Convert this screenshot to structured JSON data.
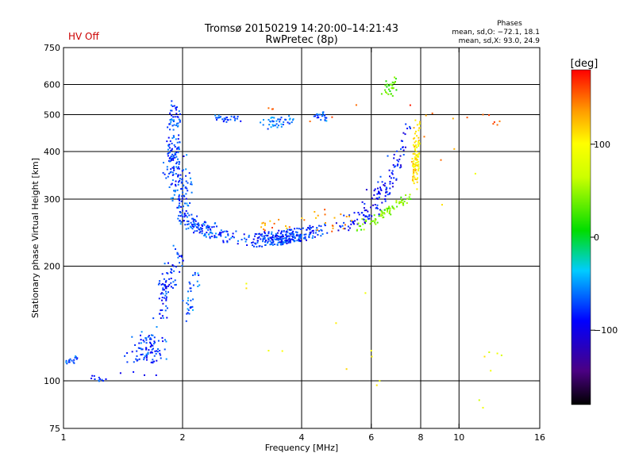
{
  "chart_data": {
    "type": "scatter",
    "title": "Tromsø 20150219 14:20:00–14:21:43",
    "subtitle": "RwPretec (8p)",
    "status_label": "HV Off",
    "status_color": "#cc0000",
    "phases": {
      "heading": "Phases",
      "line_o": "mean, sd,O: −72.1, 18.1",
      "line_x": "mean, sd,X:  93.0, 24.9"
    },
    "xlabel": "Frequency [MHz]",
    "ylabel": "Stationary phase Virtual Height [km]",
    "x_scale": "log",
    "y_scale": "log",
    "xlim": [
      1,
      16
    ],
    "ylim": [
      75,
      750
    ],
    "x_ticks": [
      {
        "value": 1,
        "label": "1"
      },
      {
        "value": 2,
        "label": "2"
      },
      {
        "value": 4,
        "label": "4"
      },
      {
        "value": 6,
        "label": "6"
      },
      {
        "value": 8,
        "label": "8"
      },
      {
        "value": 10,
        "label": "10"
      },
      {
        "value": 16,
        "label": "16"
      }
    ],
    "y_ticks": [
      {
        "value": 75,
        "label": "75"
      },
      {
        "value": 100,
        "label": "100"
      },
      {
        "value": 200,
        "label": "200"
      },
      {
        "value": 300,
        "label": "300"
      },
      {
        "value": 400,
        "label": "400"
      },
      {
        "value": 500,
        "label": "500"
      },
      {
        "value": 600,
        "label": "600"
      },
      {
        "value": 750,
        "label": "750"
      }
    ],
    "x_grid": [
      2,
      4,
      6,
      8,
      10
    ],
    "y_grid": [
      100,
      200,
      300,
      400,
      500,
      600
    ],
    "colorbar": {
      "label": "[deg]",
      "range": [
        -180,
        180
      ],
      "ticks": [
        {
          "value": 100,
          "label": "100"
        },
        {
          "value": 0,
          "label": "0"
        },
        {
          "value": -100,
          "label": "−100"
        }
      ]
    },
    "seed": 7,
    "clusters": [
      {
        "name": "lowest-trace",
        "points": [
          [
            1.03,
            112
          ],
          [
            1.05,
            113
          ],
          [
            1.07,
            115
          ],
          [
            1.04,
            114
          ],
          [
            1.06,
            112
          ],
          [
            1.08,
            114
          ],
          [
            1.02,
            111
          ]
        ],
        "phase": -70,
        "count": 10,
        "jx": 0.02,
        "jy": 0.02
      },
      {
        "name": "lowest-trace-2",
        "points": [
          [
            1.2,
            101
          ],
          [
            1.23,
            102
          ],
          [
            1.26,
            100
          ]
        ],
        "phase": -80,
        "count": 8,
        "jx": 0.02,
        "jy": 0.02
      },
      {
        "name": "f-rise-base",
        "points": [
          [
            1.45,
            112
          ],
          [
            1.55,
            122
          ],
          [
            1.62,
            128
          ],
          [
            1.7,
            130
          ],
          [
            1.75,
            120
          ],
          [
            1.6,
            115
          ],
          [
            1.68,
            112
          ]
        ],
        "phase": -75,
        "count": 90,
        "jx": 0.05,
        "jy": 0.08
      },
      {
        "name": "f-rise-mid",
        "points": [
          [
            1.75,
            150
          ],
          [
            1.8,
            165
          ],
          [
            1.85,
            185
          ],
          [
            1.9,
            200
          ],
          [
            1.95,
            215
          ],
          [
            1.82,
            175
          ]
        ],
        "phase": -80,
        "count": 80,
        "jx": 0.04,
        "jy": 0.06
      },
      {
        "name": "f-rise-side",
        "points": [
          [
            2.05,
            160
          ],
          [
            2.1,
            175
          ],
          [
            2.15,
            190
          ],
          [
            2.08,
            150
          ]
        ],
        "phase": -65,
        "count": 30,
        "jx": 0.03,
        "jy": 0.06
      },
      {
        "name": "f2-vertical",
        "points": [
          [
            1.85,
            350
          ],
          [
            1.88,
            420
          ],
          [
            1.9,
            480
          ],
          [
            1.92,
            520
          ],
          [
            1.95,
            300
          ],
          [
            2.0,
            280
          ],
          [
            1.9,
            390
          ],
          [
            2.05,
            320
          ]
        ],
        "phase": -75,
        "count": 200,
        "jx": 0.035,
        "jy": 0.05
      },
      {
        "name": "f2-elbow",
        "points": [
          [
            2.0,
            270
          ],
          [
            2.1,
            260
          ],
          [
            2.2,
            250
          ],
          [
            2.35,
            245
          ],
          [
            2.5,
            240
          ],
          [
            2.7,
            238
          ]
        ],
        "phase": -72,
        "count": 130,
        "jx": 0.04,
        "jy": 0.04
      },
      {
        "name": "f2-floor",
        "points": [
          [
            2.9,
            235
          ],
          [
            3.1,
            233
          ],
          [
            3.3,
            235
          ],
          [
            3.5,
            236
          ],
          [
            3.7,
            240
          ],
          [
            3.9,
            242
          ],
          [
            4.2,
            245
          ],
          [
            4.5,
            248
          ]
        ],
        "phase": -78,
        "count": 260,
        "jx": 0.035,
        "jy": 0.04
      },
      {
        "name": "f2-top-patch-1",
        "points": [
          [
            2.45,
            490
          ],
          [
            2.6,
            485
          ],
          [
            2.75,
            488
          ]
        ],
        "phase": -70,
        "count": 25,
        "jx": 0.02,
        "jy": 0.02
      },
      {
        "name": "f2-top-patch-2",
        "points": [
          [
            3.2,
            470
          ],
          [
            3.4,
            480
          ],
          [
            3.6,
            478
          ],
          [
            3.8,
            484
          ]
        ],
        "phase": -60,
        "count": 40,
        "jx": 0.03,
        "jy": 0.03
      },
      {
        "name": "f2-top-patch-3",
        "points": [
          [
            4.3,
            495
          ],
          [
            4.45,
            500
          ],
          [
            4.6,
            490
          ]
        ],
        "phase": -65,
        "count": 20,
        "jx": 0.02,
        "jy": 0.02
      },
      {
        "name": "o-trace-up",
        "points": [
          [
            5.0,
            255
          ],
          [
            5.4,
            260
          ],
          [
            5.8,
            270
          ],
          [
            6.2,
            285
          ],
          [
            6.5,
            300
          ],
          [
            6.8,
            330
          ],
          [
            7.0,
            370
          ],
          [
            7.2,
            410
          ],
          [
            7.4,
            460
          ]
        ],
        "phase": -90,
        "count": 130,
        "jx": 0.025,
        "jy": 0.04
      },
      {
        "name": "x-trace",
        "points": [
          [
            5.6,
            255
          ],
          [
            6.0,
            262
          ],
          [
            6.4,
            272
          ],
          [
            6.8,
            285
          ],
          [
            7.2,
            298
          ],
          [
            7.5,
            300
          ]
        ],
        "phase": 40,
        "count": 70,
        "jx": 0.02,
        "jy": 0.03
      },
      {
        "name": "x-vertical",
        "points": [
          [
            7.7,
            330
          ],
          [
            7.75,
            360
          ],
          [
            7.8,
            400
          ],
          [
            7.82,
            440
          ],
          [
            7.85,
            470
          ],
          [
            7.8,
            380
          ]
        ],
        "phase": 110,
        "count": 90,
        "jx": 0.02,
        "jy": 0.04
      },
      {
        "name": "top-cluster",
        "points": [
          [
            6.5,
            580
          ],
          [
            6.7,
            600
          ],
          [
            6.9,
            610
          ],
          [
            6.8,
            560
          ]
        ],
        "phase": 30,
        "count": 25,
        "jx": 0.02,
        "jy": 0.03
      },
      {
        "name": "mid-scatter",
        "points": [
          [
            3.2,
            260
          ],
          [
            3.5,
            265
          ],
          [
            4.8,
            255
          ],
          [
            5.2,
            270
          ]
        ],
        "phase": 140,
        "count": 30,
        "jx": 0.03,
        "jy": 0.05
      },
      {
        "name": "sparse-high",
        "points": [
          [
            3.3,
            520
          ],
          [
            4.2,
            480
          ],
          [
            5.5,
            530
          ],
          [
            9.0,
            380
          ],
          [
            11.5,
            500
          ],
          [
            12.5,
            470
          ]
        ],
        "phase": 150,
        "count": 14,
        "jx": 0.03,
        "jy": 0.04
      },
      {
        "name": "sparse-low",
        "points": [
          [
            2.9,
            180
          ],
          [
            3.3,
            120
          ],
          [
            5.8,
            170
          ],
          [
            6.0,
            120
          ],
          [
            6.3,
            100
          ],
          [
            11.5,
            85
          ],
          [
            12.5,
            118
          ],
          [
            11.0,
            350
          ]
        ],
        "phase": 90,
        "count": 12,
        "jx": 0.03,
        "jy": 0.04
      }
    ]
  }
}
